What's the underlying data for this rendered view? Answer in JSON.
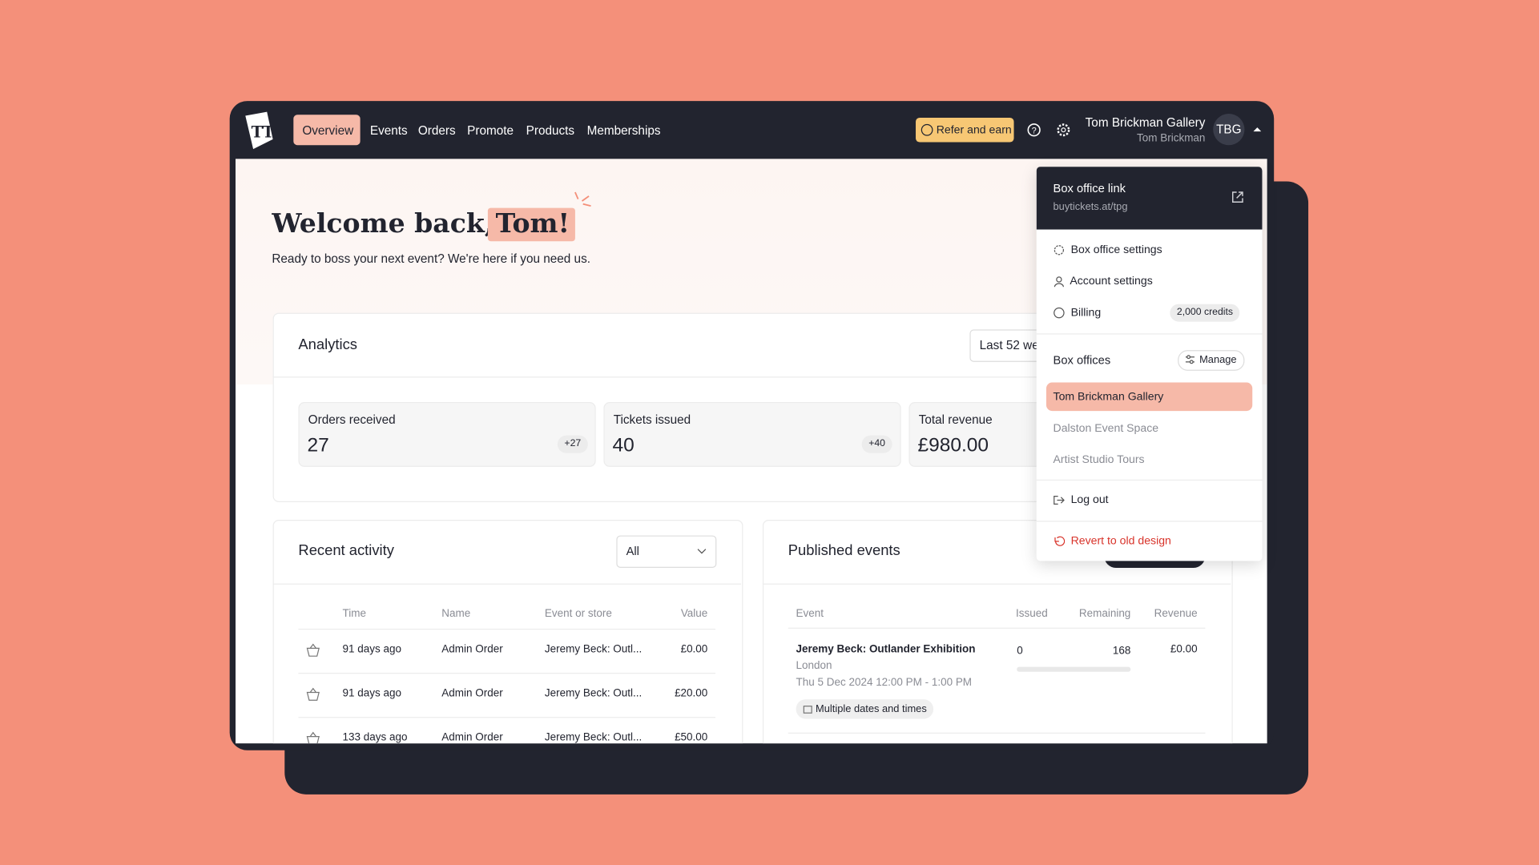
{
  "nav": {
    "items": [
      "Overview",
      "Events",
      "Orders",
      "Promote",
      "Products",
      "Memberships"
    ],
    "refer": "Refer and earn",
    "account_name": "Tom Brickman Gallery",
    "user_name": "Tom Brickman",
    "avatar": "TBG"
  },
  "welcome": {
    "title": "Welcome back,",
    "name": "Tom!",
    "subtitle": "Ready to boss your next event? We're here if you need us."
  },
  "analytics": {
    "title": "Analytics",
    "range": "Last 52 we",
    "stats": [
      {
        "label": "Orders received",
        "value": "27",
        "change": "+27"
      },
      {
        "label": "Tickets issued",
        "value": "40",
        "change": "+40"
      },
      {
        "label": "Total revenue",
        "value": "£980.00"
      }
    ]
  },
  "recent_activity": {
    "title": "Recent activity",
    "filter": "All",
    "columns": [
      "Time",
      "Name",
      "Event or store",
      "Value"
    ],
    "rows": [
      [
        "91 days ago",
        "Admin Order",
        "Jeremy Beck: Outl...",
        "£0.00"
      ],
      [
        "91 days ago",
        "Admin Order",
        "Jeremy Beck: Outl...",
        "£20.00"
      ],
      [
        "133 days ago",
        "Admin Order",
        "Jeremy Beck: Outl...",
        "£50.00"
      ]
    ]
  },
  "published_events": {
    "title": "Published events",
    "columns": [
      "Event",
      "Issued",
      "Remaining",
      "Revenue"
    ],
    "events": [
      {
        "title": "Jeremy Beck: Outlander Exhibition",
        "location": "London",
        "date": "Thu 5 Dec 2024 12:00 PM - 1:00 PM",
        "tag": "Multiple dates and times",
        "issued": "0",
        "remaining": "168",
        "revenue": "£0.00"
      }
    ]
  },
  "menu": {
    "link_title": "Box office link",
    "link_url": "buytickets.at/tpg",
    "items": [
      "Box office settings",
      "Account settings",
      "Billing"
    ],
    "credits": "2,000 credits",
    "box_offices_title": "Box offices",
    "manage": "Manage",
    "box_offices": [
      "Tom Brickman Gallery",
      "Dalston Event Space",
      "Artist Studio Tours"
    ],
    "logout": "Log out",
    "revert": "Revert to old design"
  }
}
